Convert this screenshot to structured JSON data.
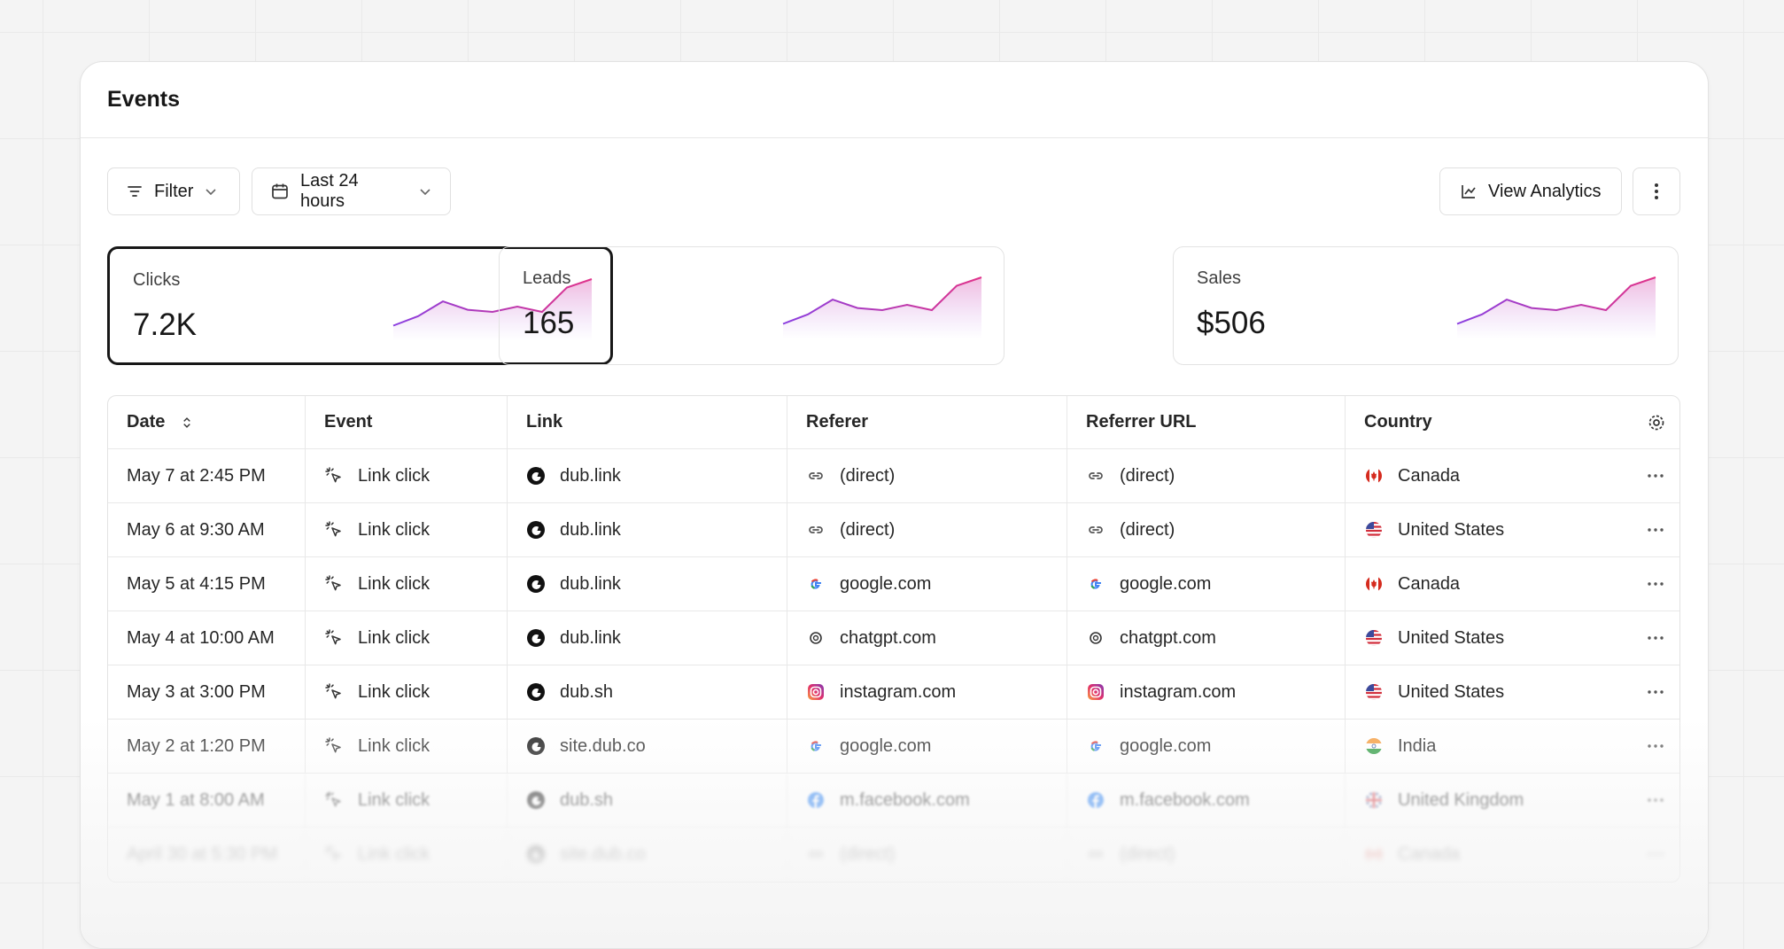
{
  "header": {
    "title": "Events"
  },
  "toolbar": {
    "filter": "Filter",
    "date_range": "Last 24 hours",
    "view_analytics": "View Analytics"
  },
  "stats": [
    {
      "label": "Clicks",
      "value": "7.2K",
      "trend": [
        13,
        22,
        36,
        28,
        26,
        31,
        26,
        49,
        57
      ]
    },
    {
      "label": "Leads",
      "value": "165",
      "trend": [
        13,
        22,
        36,
        28,
        26,
        31,
        26,
        49,
        57
      ]
    },
    {
      "label": "Sales",
      "value": "$506",
      "trend": [
        13,
        22,
        36,
        28,
        26,
        31,
        26,
        49,
        57
      ]
    }
  ],
  "table": {
    "columns": [
      "Date",
      "Event",
      "Link",
      "Referer",
      "Referrer URL",
      "Country"
    ],
    "rows": [
      [
        "May 7 at 2:45 PM",
        "Link click",
        "dub.link",
        "(direct)",
        "(direct)",
        "Canada"
      ],
      [
        "May 6 at 9:30 AM",
        "Link click",
        "dub.link",
        "(direct)",
        "(direct)",
        "United States"
      ],
      [
        "May 5 at 4:15 PM",
        "Link click",
        "dub.link",
        "google.com",
        "google.com",
        "Canada"
      ],
      [
        "May 4 at 10:00 AM",
        "Link click",
        "dub.link",
        "chatgpt.com",
        "chatgpt.com",
        "United States"
      ],
      [
        "May 3 at 3:00 PM",
        "Link click",
        "dub.sh",
        "instagram.com",
        "instagram.com",
        "United States"
      ],
      [
        "May 2 at 1:20 PM",
        "Link click",
        "site.dub.co",
        "google.com",
        "google.com",
        "India"
      ],
      [
        "May 1 at 8:00 AM",
        "Link click",
        "dub.sh",
        "m.facebook.com",
        "m.facebook.com",
        "United Kingdom"
      ],
      [
        "April 30 at 5:30 PM",
        "Link click",
        "site.dub.co",
        "(direct)",
        "(direct)",
        "Canada"
      ]
    ]
  }
}
